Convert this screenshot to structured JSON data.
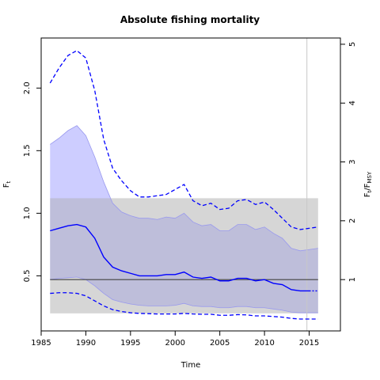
{
  "chart_data": {
    "type": "line",
    "title": "Absolute fishing mortality",
    "xlabel": "Time",
    "ylabel": "F",
    "ylabel_sub": "t",
    "y2label_num": "F",
    "y2label_num_sub": "t",
    "y2label_den": "F",
    "y2label_den_sub": "MSY",
    "xlim": [
      1985,
      2018.5
    ],
    "ylim": [
      0.06,
      2.4
    ],
    "x_ticks": [
      1985,
      1990,
      1995,
      2000,
      2005,
      2010,
      2015
    ],
    "y_ticks": [
      0.5,
      1.0,
      1.5,
      2.0
    ],
    "y_tick_labels": [
      "0.5",
      "1.0",
      "1.5",
      "2.0"
    ],
    "y2_ticks": [
      1,
      2,
      3,
      4,
      5
    ],
    "fmsy": 0.47,
    "fmsy_band": [
      0.2,
      1.12
    ],
    "band_x": [
      1986,
      2016
    ],
    "last_obs_year": 2014.75,
    "colors": {
      "estimate": "#0000ff",
      "ci_fill": "#e5e5ff",
      "fmsy_band": "#d3d3d3",
      "fmsy_line": "#404040",
      "vline": "#c8c8c8"
    },
    "series": [
      {
        "role": "estimate",
        "x": [
          1986,
          1987,
          1988,
          1989,
          1990,
          1991,
          1992,
          1993,
          1994,
          1995,
          1996,
          1997,
          1998,
          1999,
          2000,
          2001,
          2002,
          2003,
          2004,
          2005,
          2006,
          2007,
          2008,
          2009,
          2010,
          2011,
          2012,
          2013,
          2014,
          2015
        ],
        "values": [
          0.86,
          0.88,
          0.9,
          0.91,
          0.89,
          0.8,
          0.65,
          0.57,
          0.54,
          0.52,
          0.5,
          0.5,
          0.5,
          0.51,
          0.51,
          0.53,
          0.49,
          0.48,
          0.49,
          0.46,
          0.46,
          0.48,
          0.48,
          0.46,
          0.47,
          0.44,
          0.43,
          0.39,
          0.38,
          0.38
        ]
      },
      {
        "role": "estimate-forecast",
        "x": [
          2015,
          2016
        ],
        "values": [
          0.38,
          0.38
        ]
      },
      {
        "role": "upper-ci",
        "x": [
          1986,
          1987,
          1988,
          1989,
          1990,
          1991,
          1992,
          1993,
          1994,
          1995,
          1996,
          1997,
          1998,
          1999,
          2000,
          2001,
          2002,
          2003,
          2004,
          2005,
          2006,
          2007,
          2008,
          2009,
          2010,
          2011,
          2012,
          2013,
          2014,
          2015,
          2016
        ],
        "values": [
          2.04,
          2.16,
          2.26,
          2.3,
          2.24,
          1.98,
          1.59,
          1.36,
          1.26,
          1.18,
          1.13,
          1.13,
          1.14,
          1.15,
          1.19,
          1.23,
          1.1,
          1.06,
          1.08,
          1.03,
          1.04,
          1.1,
          1.11,
          1.07,
          1.09,
          1.03,
          0.96,
          0.89,
          0.87,
          0.88,
          0.89
        ]
      },
      {
        "role": "lower-ci",
        "x": [
          1986,
          1987,
          1988,
          1989,
          1990,
          1991,
          1992,
          1993,
          1994,
          1995,
          1996,
          1997,
          1998,
          1999,
          2000,
          2001,
          2002,
          2003,
          2004,
          2005,
          2006,
          2007,
          2008,
          2009,
          2010,
          2011,
          2012,
          2013,
          2014,
          2015,
          2016
        ],
        "values": [
          0.36,
          0.365,
          0.365,
          0.36,
          0.34,
          0.3,
          0.26,
          0.23,
          0.215,
          0.205,
          0.2,
          0.198,
          0.195,
          0.195,
          0.195,
          0.2,
          0.195,
          0.193,
          0.193,
          0.185,
          0.185,
          0.19,
          0.188,
          0.18,
          0.18,
          0.175,
          0.17,
          0.16,
          0.155,
          0.155,
          0.155
        ]
      },
      {
        "role": "inner-upper",
        "x": [
          1986,
          1987,
          1988,
          1989,
          1990,
          1991,
          1992,
          1993,
          1994,
          1995,
          1996,
          1997,
          1998,
          1999,
          2000,
          2001,
          2002,
          2003,
          2004,
          2005,
          2006,
          2007,
          2008,
          2009,
          2010,
          2011,
          2012,
          2013,
          2014,
          2015,
          2016
        ],
        "values": [
          1.55,
          1.6,
          1.66,
          1.7,
          1.62,
          1.45,
          1.25,
          1.08,
          1.01,
          0.98,
          0.96,
          0.96,
          0.95,
          0.97,
          0.96,
          1.0,
          0.93,
          0.9,
          0.91,
          0.86,
          0.86,
          0.91,
          0.91,
          0.87,
          0.89,
          0.84,
          0.8,
          0.72,
          0.7,
          0.71,
          0.72
        ]
      },
      {
        "role": "inner-lower",
        "x": [
          1986,
          1987,
          1988,
          1989,
          1990,
          1991,
          1992,
          1993,
          1994,
          1995,
          1996,
          1997,
          1998,
          1999,
          2000,
          2001,
          2002,
          2003,
          2004,
          2005,
          2006,
          2007,
          2008,
          2009,
          2010,
          2011,
          2012,
          2013,
          2014,
          2015,
          2016
        ],
        "values": [
          0.47,
          0.48,
          0.485,
          0.49,
          0.47,
          0.42,
          0.36,
          0.31,
          0.29,
          0.275,
          0.265,
          0.26,
          0.26,
          0.26,
          0.265,
          0.28,
          0.26,
          0.255,
          0.255,
          0.245,
          0.245,
          0.255,
          0.255,
          0.245,
          0.245,
          0.235,
          0.225,
          0.21,
          0.205,
          0.205,
          0.205
        ]
      }
    ]
  }
}
